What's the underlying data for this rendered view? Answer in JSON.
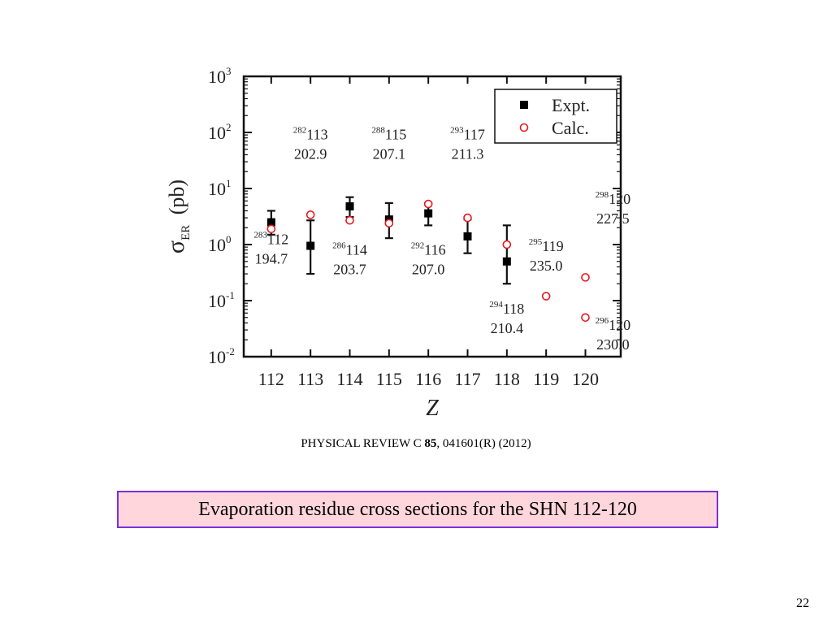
{
  "chart_data": {
    "type": "scatter",
    "xlabel": "Z",
    "ylabel_main": "σ",
    "ylabel_sub": "ER",
    "ylabel_unit": "(pb)",
    "yscale": "log",
    "ylim": [
      0.01,
      1000
    ],
    "xlim": [
      111.3,
      120.9
    ],
    "x_ticks": [
      112,
      113,
      114,
      115,
      116,
      117,
      118,
      119,
      120
    ],
    "y_tick_labels": [
      {
        "exp": -2,
        "base": "10",
        "sup": "-2"
      },
      {
        "exp": -1,
        "base": "10",
        "sup": "-1"
      },
      {
        "exp": 0,
        "base": "10",
        "sup": "0"
      },
      {
        "exp": 1,
        "base": "10",
        "sup": "1"
      },
      {
        "exp": 2,
        "base": "10",
        "sup": "2"
      },
      {
        "exp": 3,
        "base": "10",
        "sup": "3"
      }
    ],
    "legend": [
      {
        "label": "Expt.",
        "marker": "filled-square",
        "color": "#000000"
      },
      {
        "label": "Calc.",
        "marker": "open-circle",
        "color": "#e8191e"
      }
    ],
    "legend_position": "top-right",
    "series": [
      {
        "name": "Expt.",
        "points": [
          {
            "x": 112,
            "y": 2.5,
            "ylo": 1.5,
            "yhi": 4.0
          },
          {
            "x": 113,
            "y": 0.95,
            "ylo": 0.3,
            "yhi": 2.7
          },
          {
            "x": 114,
            "y": 4.8,
            "ylo": 3.1,
            "yhi": 7.0
          },
          {
            "x": 115,
            "y": 2.8,
            "ylo": 1.3,
            "yhi": 5.5
          },
          {
            "x": 116,
            "y": 3.6,
            "ylo": 2.2,
            "yhi": 5.5
          },
          {
            "x": 117,
            "y": 1.4,
            "ylo": 0.7,
            "yhi": 2.8
          },
          {
            "x": 118,
            "y": 0.5,
            "ylo": 0.2,
            "yhi": 2.2
          }
        ]
      },
      {
        "name": "Calc.",
        "points": [
          {
            "x": 112,
            "y": 1.9
          },
          {
            "x": 113,
            "y": 3.4
          },
          {
            "x": 114,
            "y": 2.7
          },
          {
            "x": 115,
            "y": 2.4
          },
          {
            "x": 116,
            "y": 5.3
          },
          {
            "x": 117,
            "y": 3.0
          },
          {
            "x": 118,
            "y": 1.0
          },
          {
            "x": 119,
            "y": 0.12
          },
          {
            "x": 120,
            "y": 0.26
          },
          {
            "x": 120,
            "y": 0.05
          }
        ]
      }
    ],
    "annotations": [
      {
        "mass": "283",
        "z": "112",
        "value": "194.7",
        "x": 112.0,
        "y": 0.95
      },
      {
        "mass": "282",
        "z": "113",
        "value": "202.9",
        "x": 113.0,
        "y": 70
      },
      {
        "mass": "286",
        "z": "114",
        "value": "203.7",
        "x": 114.0,
        "y": 0.62
      },
      {
        "mass": "288",
        "z": "115",
        "value": "207.1",
        "x": 115.0,
        "y": 70
      },
      {
        "mass": "292",
        "z": "116",
        "value": "207.0",
        "x": 116.0,
        "y": 0.62
      },
      {
        "mass": "293",
        "z": "117",
        "value": "211.3",
        "x": 117.0,
        "y": 70
      },
      {
        "mass": "294",
        "z": "118",
        "value": "210.4",
        "x": 118.0,
        "y": 0.055
      },
      {
        "mass": "295",
        "z": "119",
        "value": "235.0",
        "x": 119.0,
        "y": 0.72
      },
      {
        "mass": "298",
        "z": "120",
        "value": "227.5",
        "x": 120.7,
        "y": 5.0
      },
      {
        "mass": "296",
        "z": "120",
        "value": "230.0",
        "x": 120.7,
        "y": 0.028
      }
    ]
  },
  "reference": {
    "prefix": "PHYSICAL REVIEW C ",
    "volume": "85",
    "suffix": ", 041601(R) (2012)"
  },
  "caption": "Evaporation residue cross sections for the SHN 112-120",
  "page_number": "22"
}
